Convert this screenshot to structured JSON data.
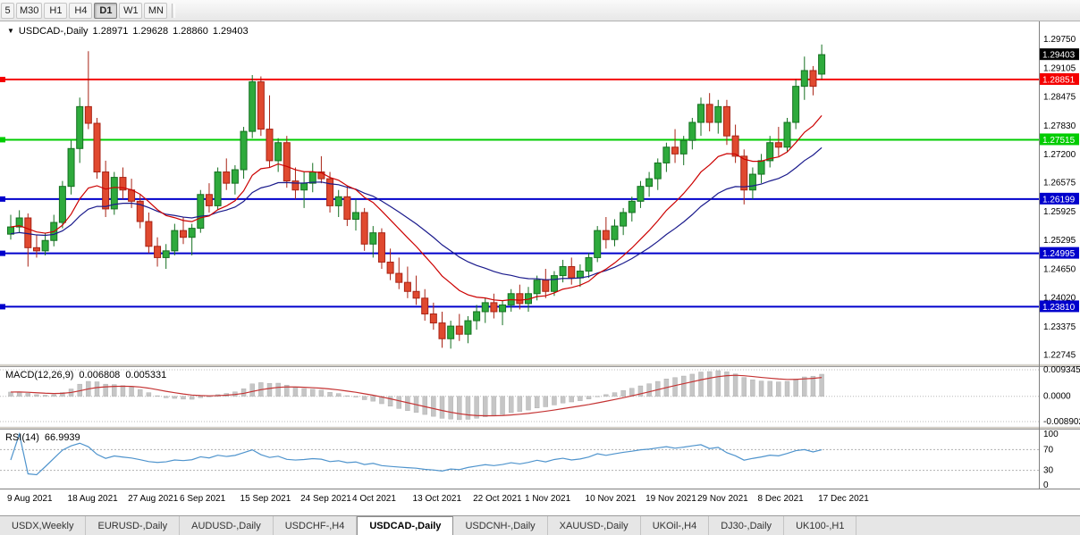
{
  "toolbar": {
    "timeframes": [
      {
        "label": "5",
        "active": false
      },
      {
        "label": "M30",
        "active": false
      },
      {
        "label": "H1",
        "active": false
      },
      {
        "label": "H4",
        "active": false
      },
      {
        "label": "D1",
        "active": true
      },
      {
        "label": "W1",
        "active": false
      },
      {
        "label": "MN",
        "active": false
      }
    ]
  },
  "chart": {
    "symbol_line": {
      "arrow": "▼",
      "symbol": "USDCAD-,Daily",
      "open": "1.28971",
      "high": "1.29628",
      "low": "1.28860",
      "close": "1.29403"
    },
    "price_axis_ticks": [
      "1.29750",
      "1.29105",
      "1.28475",
      "1.27830",
      "1.27200",
      "1.26575",
      "1.25925",
      "1.25295",
      "1.24650",
      "1.24020",
      "1.23375",
      "1.22745"
    ],
    "current_price_badge": {
      "text": "1.29403",
      "bg": "#000000"
    },
    "level_lines": [
      {
        "text": "1.28851",
        "price": 1.28851,
        "color": "#f40000"
      },
      {
        "text": "1.27515",
        "price": 1.27515,
        "color": "#00cc00"
      },
      {
        "text": "1.26199",
        "price": 1.26199,
        "color": "#0000cc"
      },
      {
        "text": "1.24995",
        "price": 1.24995,
        "color": "#0000cc"
      },
      {
        "text": "1.23810",
        "price": 1.2381,
        "color": "#0000cc"
      }
    ]
  },
  "chart_data": {
    "type": "candlestick",
    "symbol": "USDCAD-",
    "timeframe": "Daily",
    "ohlc_display": {
      "open": "1.28971",
      "high": "1.29628",
      "low": "1.28860",
      "close": "1.29403"
    },
    "y_axis_range": {
      "top": 1.301,
      "bottom": 1.2255
    },
    "x_labels": [
      {
        "index": 0,
        "label": "9 Aug 2021"
      },
      {
        "index": 7,
        "label": "18 Aug 2021"
      },
      {
        "index": 14,
        "label": "27 Aug 2021"
      },
      {
        "index": 20,
        "label": "6 Sep 2021"
      },
      {
        "index": 27,
        "label": "15 Sep 2021"
      },
      {
        "index": 34,
        "label": "24 Sep 2021"
      },
      {
        "index": 40,
        "label": "4 Oct 2021"
      },
      {
        "index": 47,
        "label": "13 Oct 2021"
      },
      {
        "index": 54,
        "label": "22 Oct 2021"
      },
      {
        "index": 60,
        "label": "1 Nov 2021"
      },
      {
        "index": 67,
        "label": "10 Nov 2021"
      },
      {
        "index": 74,
        "label": "19 Nov 2021"
      },
      {
        "index": 80,
        "label": "29 Nov 2021"
      },
      {
        "index": 87,
        "label": "8 Dec 2021"
      },
      {
        "index": 94,
        "label": "17 Dec 2021"
      }
    ],
    "candles_ohlc": [
      [
        1.2542,
        1.2585,
        1.253,
        1.2558
      ],
      [
        1.2558,
        1.2595,
        1.2545,
        1.2578
      ],
      [
        1.2578,
        1.2588,
        1.247,
        1.2512
      ],
      [
        1.2512,
        1.254,
        1.249,
        1.2505
      ],
      [
        1.2505,
        1.2545,
        1.2495,
        1.2528
      ],
      [
        1.2528,
        1.2585,
        1.2515,
        1.2568
      ],
      [
        1.2568,
        1.266,
        1.2555,
        1.2648
      ],
      [
        1.2648,
        1.275,
        1.263,
        1.2732
      ],
      [
        1.2732,
        1.2845,
        1.27,
        1.2825
      ],
      [
        1.2825,
        1.2948,
        1.2775,
        1.2788
      ],
      [
        1.2788,
        1.28,
        1.2665,
        1.268
      ],
      [
        1.268,
        1.2705,
        1.258,
        1.2598
      ],
      [
        1.2598,
        1.268,
        1.2585,
        1.2668
      ],
      [
        1.2668,
        1.269,
        1.262,
        1.264
      ],
      [
        1.264,
        1.2665,
        1.26,
        1.2615
      ],
      [
        1.2615,
        1.263,
        1.2555,
        1.257
      ],
      [
        1.257,
        1.259,
        1.25,
        1.2515
      ],
      [
        1.2515,
        1.2535,
        1.247,
        1.249
      ],
      [
        1.249,
        1.252,
        1.2465,
        1.2505
      ],
      [
        1.2505,
        1.2565,
        1.2495,
        1.255
      ],
      [
        1.255,
        1.258,
        1.252,
        1.2535
      ],
      [
        1.2535,
        1.2565,
        1.2495,
        1.2555
      ],
      [
        1.2555,
        1.264,
        1.2545,
        1.263
      ],
      [
        1.263,
        1.2655,
        1.259,
        1.2605
      ],
      [
        1.2605,
        1.269,
        1.2595,
        1.268
      ],
      [
        1.268,
        1.271,
        1.264,
        1.2655
      ],
      [
        1.2655,
        1.2695,
        1.263,
        1.2685
      ],
      [
        1.2685,
        1.278,
        1.2665,
        1.277
      ],
      [
        1.277,
        1.2895,
        1.2755,
        1.288
      ],
      [
        1.288,
        1.2892,
        1.276,
        1.2775
      ],
      [
        1.2775,
        1.285,
        1.269,
        1.2705
      ],
      [
        1.2705,
        1.2755,
        1.268,
        1.2745
      ],
      [
        1.2745,
        1.276,
        1.2645,
        1.266
      ],
      [
        1.266,
        1.269,
        1.262,
        1.264
      ],
      [
        1.264,
        1.268,
        1.26,
        1.2655
      ],
      [
        1.2655,
        1.27,
        1.2635,
        1.268
      ],
      [
        1.268,
        1.2715,
        1.2655,
        1.2665
      ],
      [
        1.2665,
        1.268,
        1.259,
        1.2605
      ],
      [
        1.2605,
        1.264,
        1.258,
        1.2625
      ],
      [
        1.2625,
        1.265,
        1.256,
        1.2575
      ],
      [
        1.2575,
        1.262,
        1.255,
        1.259
      ],
      [
        1.259,
        1.26,
        1.2505,
        1.252
      ],
      [
        1.252,
        1.256,
        1.249,
        1.2545
      ],
      [
        1.2545,
        1.2555,
        1.2465,
        1.248
      ],
      [
        1.248,
        1.251,
        1.244,
        1.2455
      ],
      [
        1.2455,
        1.249,
        1.242,
        1.2435
      ],
      [
        1.2435,
        1.247,
        1.24,
        1.2415
      ],
      [
        1.2415,
        1.245,
        1.2385,
        1.24
      ],
      [
        1.24,
        1.242,
        1.235,
        1.2365
      ],
      [
        1.2365,
        1.239,
        1.233,
        1.2345
      ],
      [
        1.2345,
        1.237,
        1.229,
        1.231
      ],
      [
        1.231,
        1.235,
        1.2288,
        1.2338
      ],
      [
        1.2338,
        1.2365,
        1.2305,
        1.232
      ],
      [
        1.232,
        1.236,
        1.23,
        1.235
      ],
      [
        1.235,
        1.2385,
        1.233,
        1.237
      ],
      [
        1.237,
        1.24,
        1.2345,
        1.239
      ],
      [
        1.239,
        1.241,
        1.2355,
        1.237
      ],
      [
        1.237,
        1.2395,
        1.234,
        1.2385
      ],
      [
        1.2385,
        1.242,
        1.237,
        1.241
      ],
      [
        1.241,
        1.243,
        1.2375,
        1.2388
      ],
      [
        1.2388,
        1.2425,
        1.237,
        1.241
      ],
      [
        1.241,
        1.245,
        1.2395,
        1.244
      ],
      [
        1.244,
        1.2465,
        1.24,
        1.2415
      ],
      [
        1.2415,
        1.246,
        1.2405,
        1.245
      ],
      [
        1.245,
        1.2485,
        1.2435,
        1.247
      ],
      [
        1.247,
        1.249,
        1.243,
        1.2445
      ],
      [
        1.2445,
        1.2475,
        1.2425,
        1.246
      ],
      [
        1.246,
        1.25,
        1.2445,
        1.249
      ],
      [
        1.249,
        1.256,
        1.248,
        1.255
      ],
      [
        1.255,
        1.258,
        1.251,
        1.253
      ],
      [
        1.253,
        1.2575,
        1.2515,
        1.256
      ],
      [
        1.256,
        1.26,
        1.254,
        1.259
      ],
      [
        1.259,
        1.2625,
        1.257,
        1.2615
      ],
      [
        1.2615,
        1.266,
        1.26,
        1.2648
      ],
      [
        1.2648,
        1.268,
        1.2625,
        1.2665
      ],
      [
        1.2665,
        1.271,
        1.264,
        1.27
      ],
      [
        1.27,
        1.2745,
        1.268,
        1.2735
      ],
      [
        1.2735,
        1.2775,
        1.27,
        1.272
      ],
      [
        1.272,
        1.276,
        1.2695,
        1.275
      ],
      [
        1.275,
        1.28,
        1.273,
        1.279
      ],
      [
        1.279,
        1.2845,
        1.276,
        1.283
      ],
      [
        1.283,
        1.2855,
        1.277,
        1.279
      ],
      [
        1.279,
        1.284,
        1.2765,
        1.2825
      ],
      [
        1.2825,
        1.284,
        1.274,
        1.276
      ],
      [
        1.276,
        1.2785,
        1.27,
        1.2715
      ],
      [
        1.2715,
        1.273,
        1.2608,
        1.264
      ],
      [
        1.264,
        1.269,
        1.262,
        1.2675
      ],
      [
        1.2675,
        1.272,
        1.2655,
        1.2705
      ],
      [
        1.2705,
        1.276,
        1.269,
        1.2745
      ],
      [
        1.2745,
        1.278,
        1.2715,
        1.2735
      ],
      [
        1.2735,
        1.28,
        1.2725,
        1.279
      ],
      [
        1.279,
        1.2885,
        1.2775,
        1.287
      ],
      [
        1.287,
        1.2936,
        1.284,
        1.2905
      ],
      [
        1.2905,
        1.2915,
        1.285,
        1.287
      ],
      [
        1.28971,
        1.29628,
        1.2886,
        1.29403
      ]
    ],
    "overlays": [
      {
        "name": "ma-fast",
        "method": "ema",
        "period": 13,
        "color": "#cc0000"
      },
      {
        "name": "ma-slow",
        "method": "ema",
        "period": 26,
        "color": "#1a1a8c"
      }
    ],
    "indicators": {
      "macd": {
        "title": "MACD(12,26,9)",
        "value_main": "0.006808",
        "value_signal": "0.005331",
        "fast": 12,
        "slow": 26,
        "signal": 9,
        "axis_labels": [
          "0.009345",
          "0.0000",
          "-0.008902"
        ],
        "scale_max": 0.009345,
        "scale_min": -0.008902,
        "histogram_color": "#c6c6c6",
        "signal_color": "#c43333"
      },
      "rsi": {
        "title": "RSI(14)",
        "value": "66.9939",
        "period": 14,
        "axis_labels": [
          "100",
          "70",
          "30",
          "0"
        ],
        "levels": [
          70,
          30
        ],
        "line_color": "#4f94cd",
        "scale": [
          0,
          100
        ]
      }
    }
  },
  "tabs": [
    {
      "label": "USDX,Weekly",
      "active": false
    },
    {
      "label": "EURUSD-,Daily",
      "active": false
    },
    {
      "label": "AUDUSD-,Daily",
      "active": false
    },
    {
      "label": "USDCHF-,H4",
      "active": false
    },
    {
      "label": "USDCAD-,Daily",
      "active": true
    },
    {
      "label": "USDCNH-,Daily",
      "active": false
    },
    {
      "label": "XAUUSD-,Daily",
      "active": false
    },
    {
      "label": "UKOil-,H4",
      "active": false
    },
    {
      "label": "DJ30-,Daily",
      "active": false
    },
    {
      "label": "UK100-,H1",
      "active": false
    }
  ],
  "colors": {
    "bull": "#2eaa3c",
    "bull_border": "#157021",
    "bear": "#e0492f",
    "bear_border": "#a82315",
    "chart_bg": "#ffffff",
    "chrome_bg": "#e6e6e6",
    "axis_text": "#000000"
  }
}
